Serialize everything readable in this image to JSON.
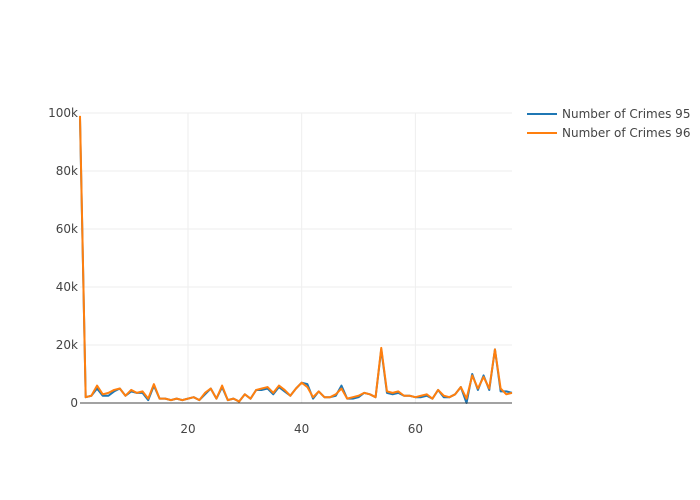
{
  "chart_data": {
    "type": "line",
    "title": "",
    "xlabel": "",
    "ylabel": "",
    "xlim": [
      1,
      77
    ],
    "ylim": [
      0,
      100000
    ],
    "x_ticks": [
      20,
      40,
      60
    ],
    "y_ticks": [
      0,
      20000,
      40000,
      60000,
      80000,
      100000
    ],
    "x_tick_labels": [
      "20",
      "40",
      "60"
    ],
    "y_tick_labels": [
      "0",
      "20k",
      "40k",
      "60k",
      "80k",
      "100k"
    ],
    "grid": true,
    "legend": "top-right",
    "x": [
      1,
      2,
      3,
      4,
      5,
      6,
      7,
      8,
      9,
      10,
      11,
      12,
      13,
      14,
      15,
      16,
      17,
      18,
      19,
      20,
      21,
      22,
      23,
      24,
      25,
      26,
      27,
      28,
      29,
      30,
      31,
      32,
      33,
      34,
      35,
      36,
      37,
      38,
      39,
      40,
      41,
      42,
      43,
      44,
      45,
      46,
      47,
      48,
      49,
      50,
      51,
      52,
      53,
      54,
      55,
      56,
      57,
      58,
      59,
      60,
      61,
      62,
      63,
      64,
      65,
      66,
      67,
      68,
      69,
      70,
      71,
      72,
      73,
      74,
      75,
      76,
      77
    ],
    "series": [
      {
        "name": "Number of Crimes 95",
        "color": "#1f77b4",
        "values": [
          98000,
          2000,
          2500,
          5000,
          2500,
          2500,
          4000,
          5000,
          2500,
          4000,
          3500,
          3500,
          1000,
          6000,
          1500,
          1500,
          1000,
          1500,
          1000,
          1500,
          2000,
          1000,
          3000,
          5000,
          1500,
          5500,
          1000,
          1500,
          500,
          3000,
          1500,
          4500,
          4500,
          5000,
          3000,
          5500,
          4000,
          2500,
          5000,
          7000,
          6500,
          1500,
          4000,
          2000,
          2000,
          2500,
          6000,
          1500,
          1500,
          2000,
          3500,
          3000,
          2000,
          18500,
          3500,
          3000,
          3500,
          2500,
          2500,
          2000,
          2000,
          2500,
          1500,
          4500,
          2000,
          2000,
          3000,
          5500,
          0,
          10000,
          4500,
          9500,
          4500,
          18500,
          4000,
          4000,
          3500
        ]
      },
      {
        "name": "Number of Crimes 96",
        "color": "#ff7f0e",
        "values": [
          99000,
          2000,
          2500,
          6000,
          3000,
          3500,
          4500,
          5000,
          2500,
          4500,
          3500,
          4000,
          1500,
          6500,
          1500,
          1500,
          1000,
          1500,
          1000,
          1500,
          2000,
          1000,
          3500,
          5000,
          1500,
          6000,
          1000,
          1500,
          500,
          3000,
          1500,
          4500,
          5000,
          5500,
          3500,
          6000,
          4500,
          2500,
          5000,
          7000,
          5500,
          2000,
          4000,
          2000,
          2000,
          3000,
          5000,
          1500,
          2000,
          2500,
          3500,
          3000,
          2000,
          19000,
          4000,
          3500,
          4000,
          2500,
          2500,
          2000,
          2500,
          3000,
          1500,
          4500,
          2500,
          2000,
          3000,
          5500,
          1500,
          9500,
          5000,
          9000,
          5000,
          18500,
          5000,
          3000,
          3500
        ]
      }
    ]
  }
}
